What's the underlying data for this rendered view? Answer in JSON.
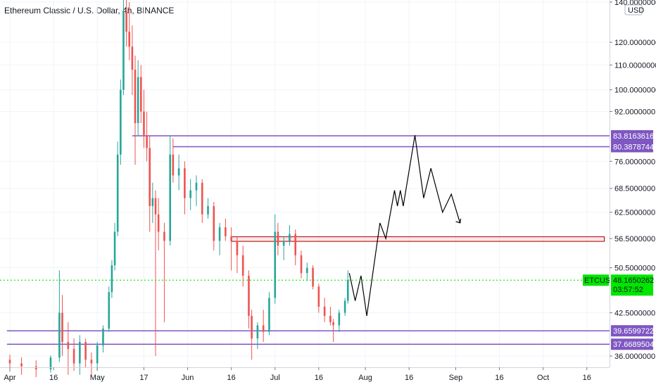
{
  "header": {
    "title": "Ethereum Classic / U.S. Dollar, 4h, BINANCE"
  },
  "colors": {
    "up": "#26a69a",
    "down": "#ef5350",
    "level_line": "#7e57c2",
    "current_price": "#00e600",
    "box_border": "#b71c1c",
    "forecast": "#000000",
    "grid": "#f0f3fa",
    "axis_text": "#131722"
  },
  "chart_data": {
    "type": "candlestick",
    "instrument": "ETCUSD",
    "timeframe": "4h",
    "exchange": "BINANCE",
    "y_scale": "log",
    "ylim": [
      33,
      142
    ],
    "y_unit": "USD",
    "y_ticks": [
      {
        "value": 140,
        "label": "140.0000000"
      },
      {
        "value": 120,
        "label": "120.0000000"
      },
      {
        "value": 110,
        "label": "110.0000000"
      },
      {
        "value": 100,
        "label": "100.0000000"
      },
      {
        "value": 92,
        "label": "92.0000000"
      },
      {
        "value": 76,
        "label": "76.0000000"
      },
      {
        "value": 68.5,
        "label": "68.5000000"
      },
      {
        "value": 62.5,
        "label": "62.5000000"
      },
      {
        "value": 56.5,
        "label": "56.5000000"
      },
      {
        "value": 50.5,
        "label": "50.5000000"
      },
      {
        "value": 42.5,
        "label": "42.5000000"
      },
      {
        "value": 36,
        "label": "36.0000000"
      }
    ],
    "x_ticks": [
      {
        "day": 1,
        "label": "Apr"
      },
      {
        "day": 16,
        "label": "16"
      },
      {
        "day": 31,
        "label": "May"
      },
      {
        "day": 47,
        "label": "17"
      },
      {
        "day": 62,
        "label": "Jun"
      },
      {
        "day": 77,
        "label": "16"
      },
      {
        "day": 92,
        "label": "Jul"
      },
      {
        "day": 107,
        "label": "16"
      },
      {
        "day": 123,
        "label": "Aug"
      },
      {
        "day": 138,
        "label": "16"
      },
      {
        "day": 154,
        "label": "Sep"
      },
      {
        "day": 169,
        "label": "16"
      },
      {
        "day": 184,
        "label": "Oct"
      },
      {
        "day": 199,
        "label": "16"
      }
    ],
    "levels": [
      {
        "value": 83.8163616,
        "label": "83.8163616",
        "from_day": 43
      },
      {
        "value": 80.3878744,
        "label": "80.3878744",
        "from_day": 57
      },
      {
        "value": 39.6599722,
        "label": "39.6599722",
        "from_day": 0
      },
      {
        "value": 37.6689504,
        "label": "37.6689504",
        "from_day": 0
      }
    ],
    "current_price": {
      "symbol": "ETCUSD",
      "value": 48.1650262,
      "label": "48.1650262",
      "countdown": "03:57:52"
    },
    "zone": {
      "from_day": 77,
      "to_day": 205,
      "high": 56.9,
      "low": 55.9
    },
    "ohlc": [
      {
        "day": 1,
        "o": 35.5,
        "h": 36.2,
        "l": 33.9,
        "c": 35.0
      },
      {
        "day": 5,
        "o": 35.0,
        "h": 35.8,
        "l": 33.5,
        "c": 34.6
      },
      {
        "day": 10,
        "o": 34.6,
        "h": 35.4,
        "l": 33.2,
        "c": 34.2
      },
      {
        "day": 15,
        "o": 34.2,
        "h": 36.1,
        "l": 33.8,
        "c": 35.8
      },
      {
        "day": 18,
        "o": 35.8,
        "h": 50.0,
        "l": 35.2,
        "c": 42.5
      },
      {
        "day": 19,
        "o": 42.5,
        "h": 45.5,
        "l": 36.0,
        "c": 38.0
      },
      {
        "day": 21,
        "o": 38.0,
        "h": 41.0,
        "l": 33.5,
        "c": 37.0
      },
      {
        "day": 23,
        "o": 37.0,
        "h": 38.5,
        "l": 34.0,
        "c": 35.0
      },
      {
        "day": 25,
        "o": 35.0,
        "h": 39.0,
        "l": 33.5,
        "c": 38.0
      },
      {
        "day": 27,
        "o": 38.0,
        "h": 38.5,
        "l": 34.5,
        "c": 35.5
      },
      {
        "day": 29,
        "o": 35.5,
        "h": 36.5,
        "l": 33.5,
        "c": 35.0
      },
      {
        "day": 31,
        "o": 35.0,
        "h": 38.0,
        "l": 34.0,
        "c": 37.5
      },
      {
        "day": 33,
        "o": 37.5,
        "h": 40.5,
        "l": 36.5,
        "c": 40.0
      },
      {
        "day": 35,
        "o": 40.0,
        "h": 47.0,
        "l": 39.5,
        "c": 46.0
      },
      {
        "day": 36,
        "o": 46.0,
        "h": 52.0,
        "l": 45.0,
        "c": 51.0
      },
      {
        "day": 37,
        "o": 51.0,
        "h": 60.0,
        "l": 50.0,
        "c": 58.0
      },
      {
        "day": 38,
        "o": 58.0,
        "h": 82.0,
        "l": 57.0,
        "c": 78.0
      },
      {
        "day": 39,
        "o": 78.0,
        "h": 104.0,
        "l": 75.0,
        "c": 100.0
      },
      {
        "day": 40,
        "o": 100.0,
        "h": 142.0,
        "l": 98.0,
        "c": 135.0
      },
      {
        "day": 41,
        "o": 135.0,
        "h": 142.0,
        "l": 118.0,
        "c": 125.0
      },
      {
        "day": 42,
        "o": 125.0,
        "h": 140.0,
        "l": 112.0,
        "c": 118.0
      },
      {
        "day": 43,
        "o": 118.0,
        "h": 128.0,
        "l": 98.0,
        "c": 108.0
      },
      {
        "day": 44,
        "o": 108.0,
        "h": 114.0,
        "l": 75.0,
        "c": 88.0
      },
      {
        "day": 45,
        "o": 88.0,
        "h": 112.0,
        "l": 84.0,
        "c": 105.0
      },
      {
        "day": 46,
        "o": 105.0,
        "h": 110.0,
        "l": 88.0,
        "c": 92.0
      },
      {
        "day": 47,
        "o": 92.0,
        "h": 100.0,
        "l": 80.0,
        "c": 84.0
      },
      {
        "day": 48,
        "o": 84.0,
        "h": 92.0,
        "l": 76.0,
        "c": 80.0
      },
      {
        "day": 49,
        "o": 80.0,
        "h": 84.0,
        "l": 58.0,
        "c": 64.0
      },
      {
        "day": 50,
        "o": 64.0,
        "h": 70.0,
        "l": 60.0,
        "c": 66.0
      },
      {
        "day": 51,
        "o": 66.0,
        "h": 68.0,
        "l": 36.0,
        "c": 62.0
      },
      {
        "day": 52,
        "o": 62.0,
        "h": 66.0,
        "l": 54.0,
        "c": 58.0
      },
      {
        "day": 54,
        "o": 58.0,
        "h": 60.0,
        "l": 41.0,
        "c": 56.0
      },
      {
        "day": 56,
        "o": 56.0,
        "h": 84.0,
        "l": 55.0,
        "c": 78.0
      },
      {
        "day": 57,
        "o": 78.0,
        "h": 83.0,
        "l": 70.0,
        "c": 72.0
      },
      {
        "day": 59,
        "o": 72.0,
        "h": 78.0,
        "l": 68.0,
        "c": 74.0
      },
      {
        "day": 61,
        "o": 74.0,
        "h": 76.0,
        "l": 62.0,
        "c": 66.0
      },
      {
        "day": 63,
        "o": 66.0,
        "h": 71.0,
        "l": 63.0,
        "c": 68.0
      },
      {
        "day": 65,
        "o": 68.0,
        "h": 72.0,
        "l": 64.0,
        "c": 70.0
      },
      {
        "day": 67,
        "o": 70.0,
        "h": 71.0,
        "l": 60.0,
        "c": 62.0
      },
      {
        "day": 69,
        "o": 62.0,
        "h": 66.0,
        "l": 61.0,
        "c": 64.0
      },
      {
        "day": 71,
        "o": 64.0,
        "h": 65.0,
        "l": 54.0,
        "c": 56.0
      },
      {
        "day": 73,
        "o": 56.0,
        "h": 60.0,
        "l": 53.0,
        "c": 59.0
      },
      {
        "day": 75,
        "o": 59.0,
        "h": 61.0,
        "l": 56.0,
        "c": 57.0
      },
      {
        "day": 77,
        "o": 57.0,
        "h": 59.0,
        "l": 50.0,
        "c": 56.0
      },
      {
        "day": 79,
        "o": 56.0,
        "h": 57.0,
        "l": 49.5,
        "c": 53.0
      },
      {
        "day": 81,
        "o": 53.0,
        "h": 55.0,
        "l": 47.0,
        "c": 49.0
      },
      {
        "day": 83,
        "o": 49.0,
        "h": 50.0,
        "l": 40.0,
        "c": 42.0
      },
      {
        "day": 84,
        "o": 42.0,
        "h": 43.0,
        "l": 35.5,
        "c": 38.5
      },
      {
        "day": 86,
        "o": 38.5,
        "h": 41.0,
        "l": 37.0,
        "c": 40.5
      },
      {
        "day": 88,
        "o": 40.5,
        "h": 43.0,
        "l": 38.0,
        "c": 39.5
      },
      {
        "day": 90,
        "o": 39.5,
        "h": 46.0,
        "l": 39.0,
        "c": 45.0
      },
      {
        "day": 92,
        "o": 45.0,
        "h": 62.0,
        "l": 44.0,
        "c": 58.0
      },
      {
        "day": 93,
        "o": 58.0,
        "h": 60.0,
        "l": 53.0,
        "c": 55.0
      },
      {
        "day": 95,
        "o": 55.0,
        "h": 57.0,
        "l": 52.0,
        "c": 56.0
      },
      {
        "day": 97,
        "o": 56.0,
        "h": 59.5,
        "l": 55.0,
        "c": 57.5
      },
      {
        "day": 99,
        "o": 57.5,
        "h": 58.5,
        "l": 51.0,
        "c": 53.0
      },
      {
        "day": 101,
        "o": 53.0,
        "h": 54.0,
        "l": 48.5,
        "c": 49.5
      },
      {
        "day": 103,
        "o": 49.5,
        "h": 51.5,
        "l": 48.0,
        "c": 50.5
      },
      {
        "day": 105,
        "o": 50.5,
        "h": 51.0,
        "l": 46.5,
        "c": 47.0
      },
      {
        "day": 107,
        "o": 47.0,
        "h": 47.5,
        "l": 42.5,
        "c": 43.5
      },
      {
        "day": 109,
        "o": 43.5,
        "h": 45.0,
        "l": 41.0,
        "c": 42.0
      },
      {
        "day": 111,
        "o": 42.0,
        "h": 43.5,
        "l": 40.5,
        "c": 41.0
      },
      {
        "day": 112,
        "o": 41.0,
        "h": 41.5,
        "l": 38.0,
        "c": 40.5
      },
      {
        "day": 114,
        "o": 40.5,
        "h": 43.0,
        "l": 39.5,
        "c": 42.5
      },
      {
        "day": 116,
        "o": 42.5,
        "h": 45.0,
        "l": 42.0,
        "c": 44.5
      },
      {
        "day": 117,
        "o": 44.5,
        "h": 50.0,
        "l": 44.0,
        "c": 48.2
      }
    ],
    "forecast_path": [
      {
        "day": 117.5,
        "value": 49.5
      },
      {
        "day": 119.5,
        "value": 44.5
      },
      {
        "day": 121.5,
        "value": 49.0
      },
      {
        "day": 123.5,
        "value": 42.0
      },
      {
        "day": 128,
        "value": 60.0
      },
      {
        "day": 130,
        "value": 56.5
      },
      {
        "day": 133,
        "value": 68.0
      },
      {
        "day": 134,
        "value": 64.0
      },
      {
        "day": 135,
        "value": 68.0
      },
      {
        "day": 136,
        "value": 64.0
      },
      {
        "day": 140,
        "value": 84.0
      },
      {
        "day": 143,
        "value": 66.0
      },
      {
        "day": 145.5,
        "value": 74.0
      },
      {
        "day": 149.5,
        "value": 62.5
      },
      {
        "day": 152.5,
        "value": 67.0
      },
      {
        "day": 155.5,
        "value": 60.0
      }
    ]
  }
}
